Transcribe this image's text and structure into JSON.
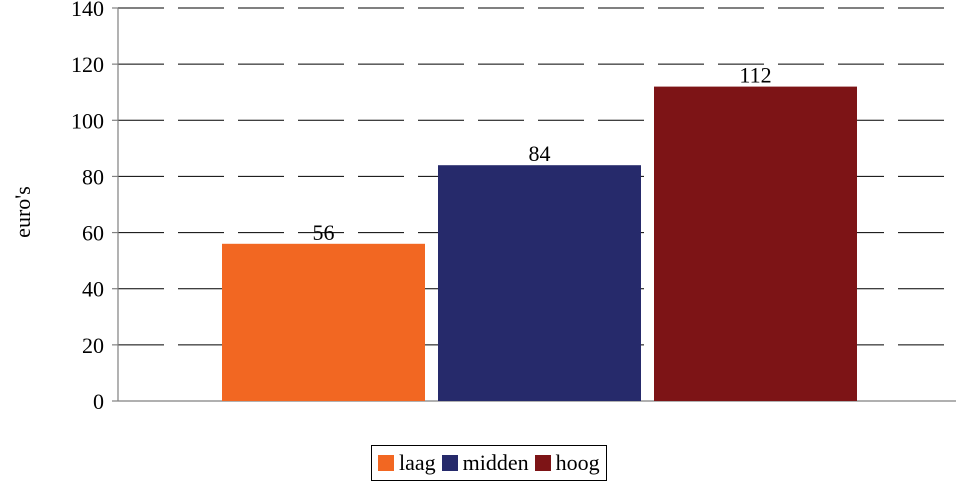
{
  "chart_data": {
    "type": "bar",
    "categories": [
      "laag",
      "midden",
      "hoog"
    ],
    "values": [
      56,
      84,
      112
    ],
    "data_labels": [
      "56",
      "84",
      "112"
    ],
    "colors": [
      "#f26722",
      "#262a6b",
      "#7d1416"
    ],
    "ylabel": "euro's",
    "ylim": [
      0,
      140
    ],
    "yticks": [
      0,
      20,
      40,
      60,
      80,
      100,
      120,
      140
    ],
    "grid": true,
    "grid_style": "dashed",
    "legend": "bottom"
  }
}
